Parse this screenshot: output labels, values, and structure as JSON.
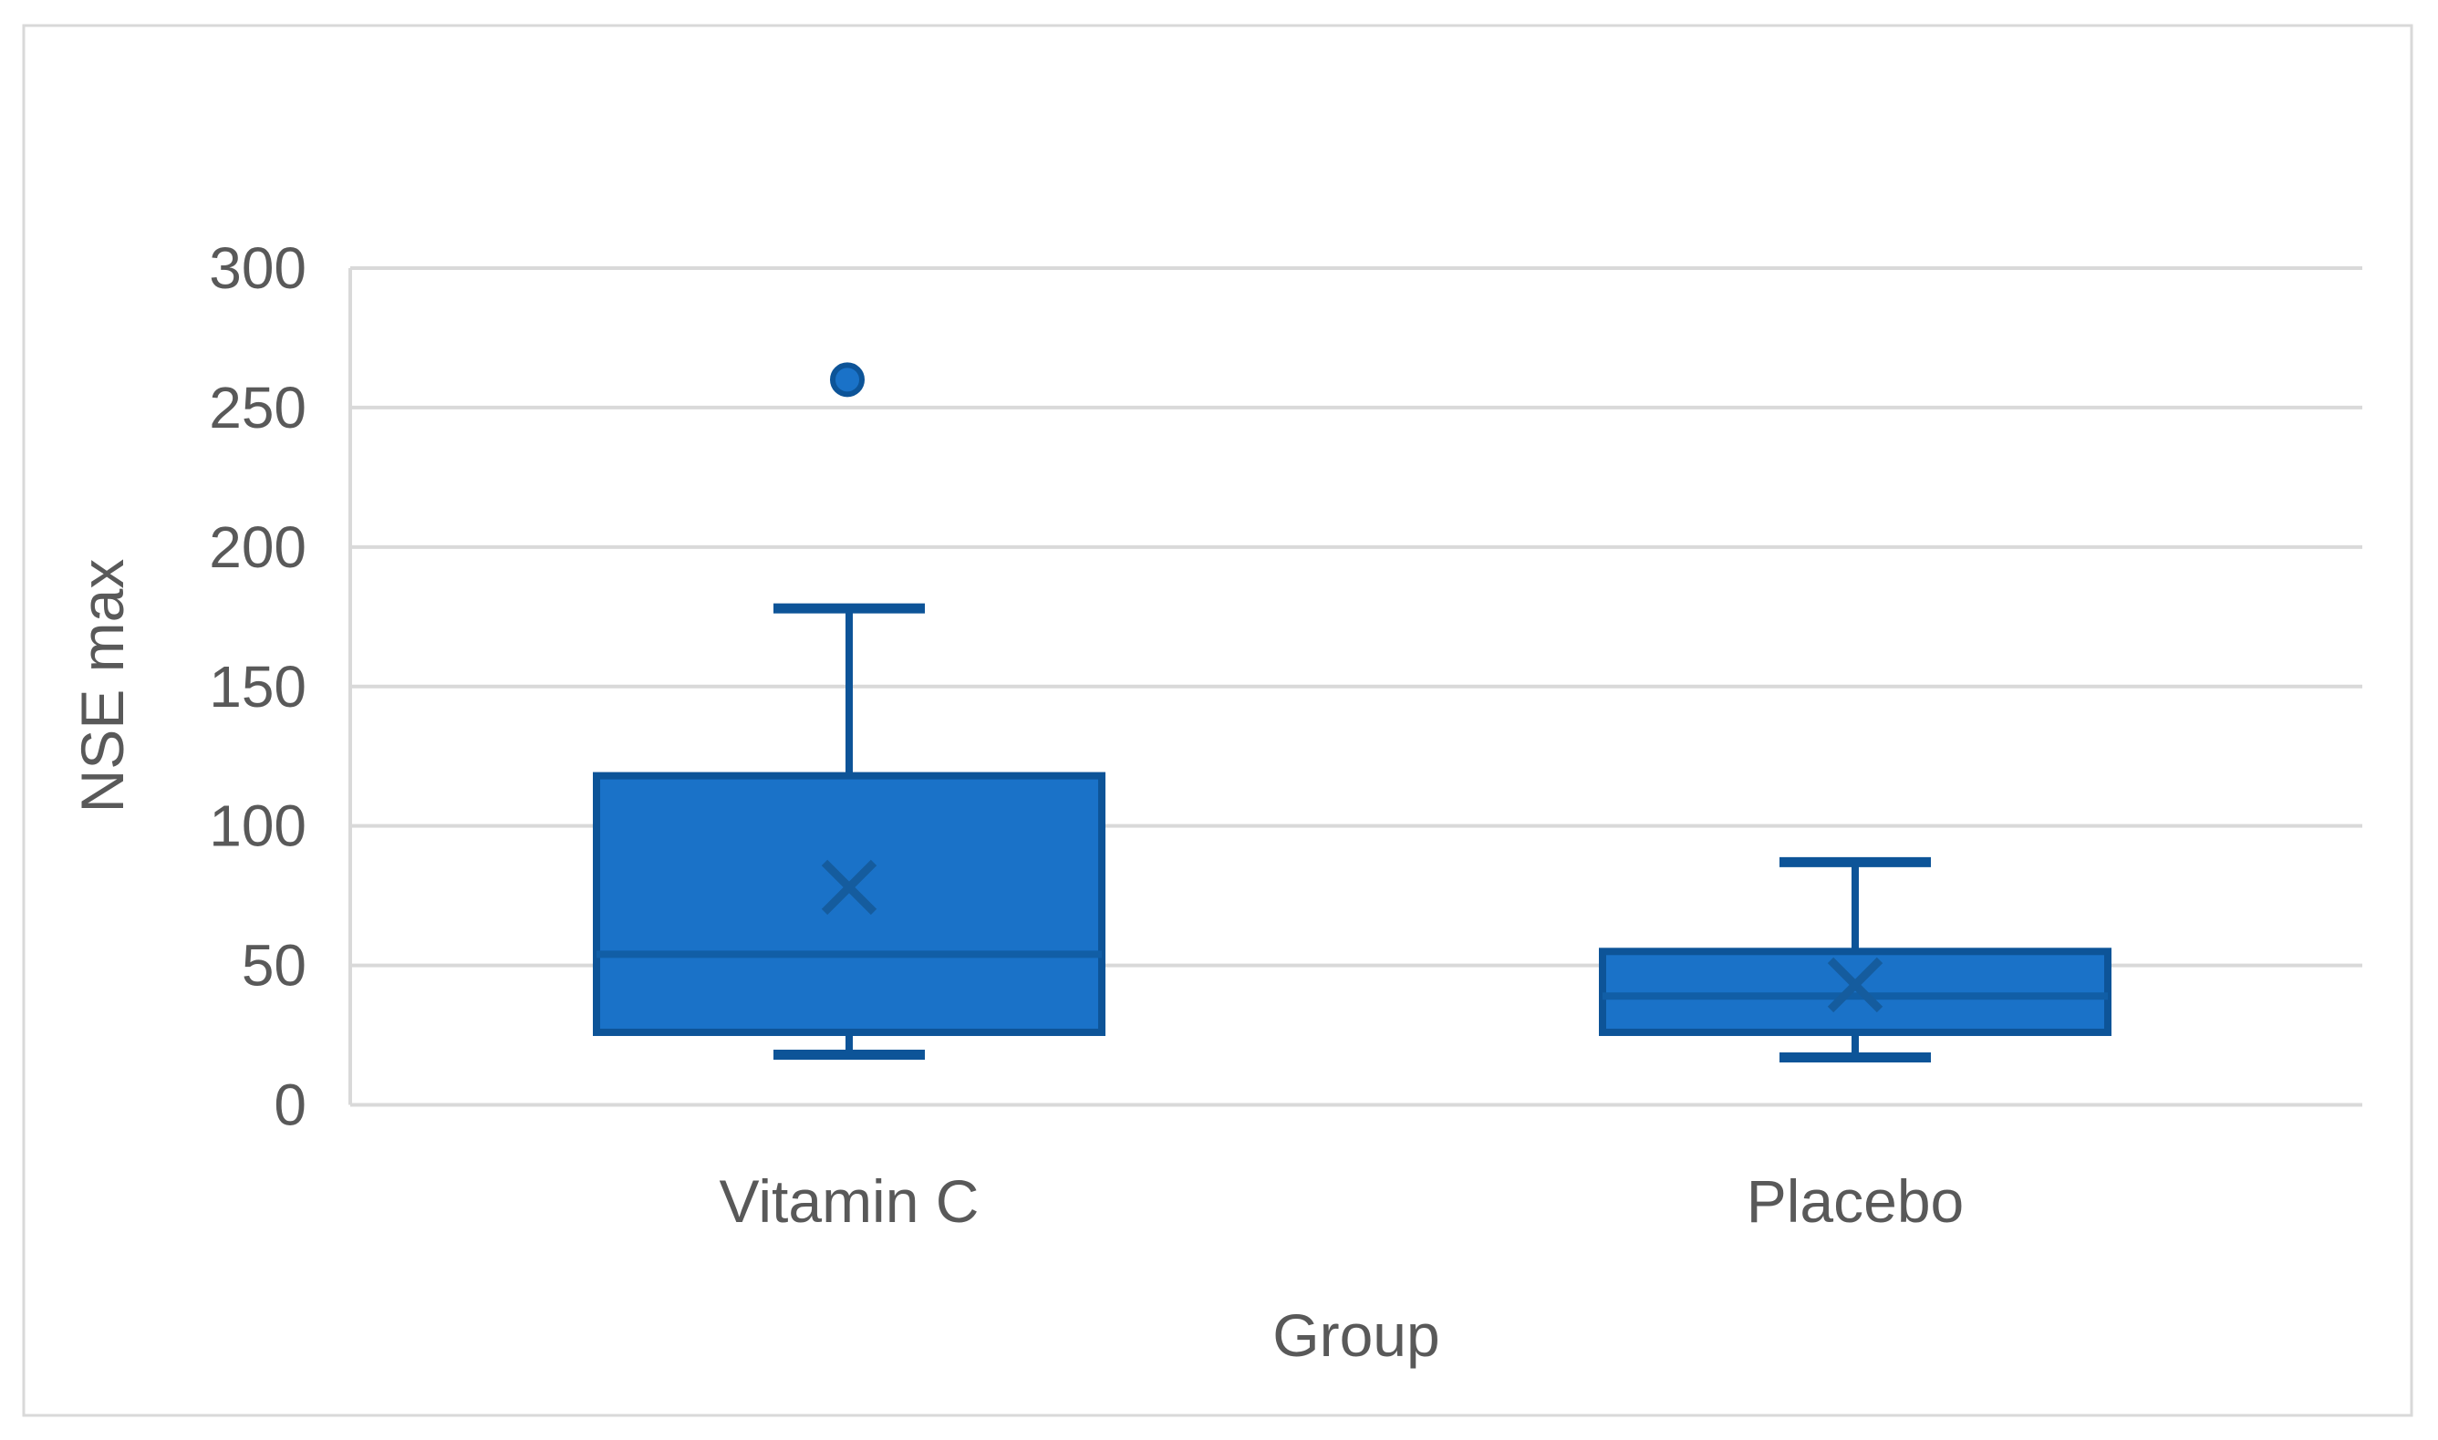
{
  "chart_data": {
    "type": "boxplot",
    "title": "",
    "xlabel": "Group",
    "ylabel": "NSE max",
    "categories": [
      "Vitamin C",
      "Placebo"
    ],
    "y_axis": {
      "min": 0,
      "max": 300,
      "step": 50,
      "ticks": [
        300,
        250,
        200,
        150,
        100,
        50,
        0
      ]
    },
    "grid": true,
    "legend": "none",
    "series": [
      {
        "name": "Vitamin C",
        "whisker_low": 18,
        "q1": 26,
        "median": 54,
        "q3": 118,
        "whisker_high": 178,
        "mean": 78,
        "outliers": [
          260
        ]
      },
      {
        "name": "Placebo",
        "whisker_low": 17,
        "q1": 26,
        "median": 39,
        "q3": 55,
        "whisker_high": 87,
        "mean": 43,
        "outliers": []
      }
    ]
  },
  "colors": {
    "box_fill": "#1A72C8",
    "box_border": "#0D5498",
    "median_line": "#115EA6",
    "mean_marker": "#155C9E",
    "whisker": "#0D5498",
    "outlier_fill": "#1A72C8",
    "outlier_border": "#0D5498",
    "gridline": "#D9D9D9",
    "axis_line": "#D9D9D9",
    "canvas_border": "#D9D9D9",
    "text": "#595959",
    "background": "#FFFFFF"
  }
}
